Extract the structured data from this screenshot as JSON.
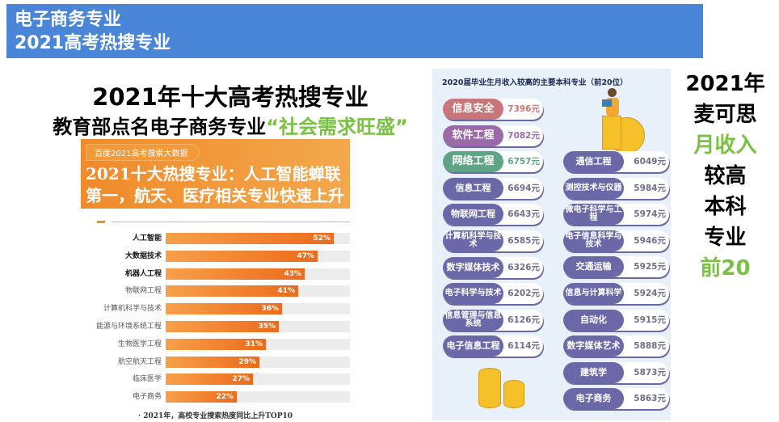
{
  "header": {
    "line1": "电子商务专业",
    "line2": "2021高考热搜专业"
  },
  "heading": {
    "line1": "2021年十大高考热搜专业",
    "line2_prefix": "教育部点名电子商务专业",
    "line2_quote": "“社会需求旺盛”"
  },
  "left_image": {
    "tag": "百度2021高考搜索大数据",
    "title1": "2021十大热搜专业：人工智能蝉联",
    "title2": "第一，航天、医疗相关专业快速上升",
    "footer": "· 2021年，高校专业搜索热度同比上升TOP10",
    "colors": {
      "bar": "#ec6a1c",
      "header": "#f08a2a"
    },
    "chart_data": {
      "type": "bar",
      "categories": [
        "人工智能",
        "大数据技术",
        "机器人工程",
        "物联网工程",
        "计算机科学与技术",
        "能源与环境系统工程",
        "生物医学工程",
        "航空航天工程",
        "临床医学",
        "电子商务"
      ],
      "values": [
        52,
        47,
        43,
        41,
        36,
        35,
        31,
        29,
        27,
        22
      ],
      "labels": [
        "52%",
        "47%",
        "43%",
        "41%",
        "36%",
        "35%",
        "31%",
        "29%",
        "27%",
        "22%"
      ],
      "ylim": [
        0,
        100
      ]
    }
  },
  "right_image": {
    "title": "2020届毕业生月收入较高的主要本科专业（前20位）",
    "items": [
      {
        "name": "信息安全",
        "value": "7396元",
        "color": "#c9767a"
      },
      {
        "name": "软件工程",
        "value": "7082元",
        "color": "#9c6aa8"
      },
      {
        "name": "网络工程",
        "value": "6757元",
        "color": "#5fa487"
      },
      {
        "name": "信息工程",
        "value": "6694元",
        "color": "#6b68a8"
      },
      {
        "name": "物联网工程",
        "value": "6643元",
        "color": "#6b68a8"
      },
      {
        "name": "计算机科学与技术",
        "value": "6585元",
        "color": "#6b68a8"
      },
      {
        "name": "数字媒体技术",
        "value": "6326元",
        "color": "#6b68a8"
      },
      {
        "name": "电子科学与技术",
        "value": "6202元",
        "color": "#6b68a8"
      },
      {
        "name": "信息管理与信息系统",
        "value": "6126元",
        "color": "#6b68a8"
      },
      {
        "name": "电子信息工程",
        "value": "6114元",
        "color": "#6b68a8"
      },
      {
        "name": "通信工程",
        "value": "6049元",
        "color": "#6b68a8"
      },
      {
        "name": "测控技术与仪器",
        "value": "5984元",
        "color": "#6b68a8"
      },
      {
        "name": "微电子科学与工程",
        "value": "5974元",
        "color": "#6b68a8"
      },
      {
        "name": "电子信息科学与技术",
        "value": "5946元",
        "color": "#6b68a8"
      },
      {
        "name": "交通运输",
        "value": "5925元",
        "color": "#6b68a8"
      },
      {
        "name": "信息与计算科学",
        "value": "5924元",
        "color": "#6b68a8"
      },
      {
        "name": "自动化",
        "value": "5915元",
        "color": "#6b68a8"
      },
      {
        "name": "数字媒体艺术",
        "value": "5888元",
        "color": "#6b68a8"
      },
      {
        "name": "建筑学",
        "value": "5873元",
        "color": "#6b68a8"
      },
      {
        "name": "电子商务",
        "value": "5863元",
        "color": "#6b68a8"
      }
    ]
  },
  "side_text": {
    "l1": "2021年",
    "l2": "麦可思",
    "l3": "月收入",
    "l4": "较高",
    "l5": "本科",
    "l6": "专业",
    "l7": "前20"
  },
  "colors": {
    "header_bg": "#4a86d8",
    "accent_green": "#7ac143"
  }
}
